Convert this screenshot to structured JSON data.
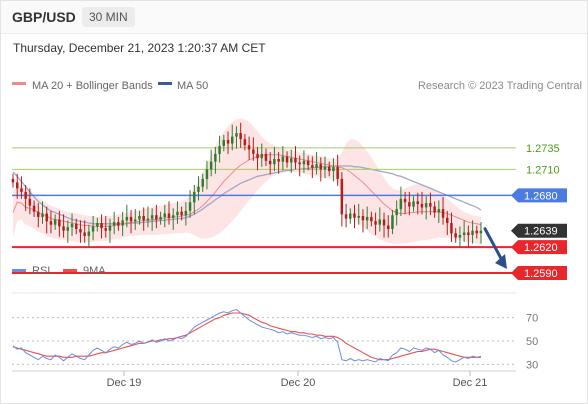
{
  "header": {
    "symbol": "GBP/USD",
    "timeframe": "30 MIN"
  },
  "datetime": "Thursday, December 21, 2023 1:20:37 AM CET",
  "legend": {
    "ma20": "MA 20 + Bollinger Bands",
    "ma50": "MA 50",
    "credit": "Research © 2023 Trading Central",
    "rsi": "RSI",
    "rsi_ma": "9MA"
  },
  "colors": {
    "ma20": "#f08a8a",
    "band": "#fde0e0",
    "ma50": "#9fa8c8",
    "green": "#9fd06a",
    "green_text": "#4f9a1f",
    "blue": "#4a7be0",
    "red": "#e8262c",
    "price_tag": "#333333",
    "rsi": "#6b8de3",
    "rsi_ma": "#e85050",
    "arrow": "#2c4f8c",
    "bull": "#2f7d32",
    "bear": "#b71c1c"
  },
  "chart_data": [
    {
      "type": "candlestick",
      "title": "GBP/USD",
      "timeframe": "30 MIN",
      "x_ticks": [
        "Dec 19",
        "Dec 20",
        "Dec 21"
      ],
      "ylim": [
        1.2575,
        1.2795
      ],
      "last_price": 1.2639,
      "levels": [
        {
          "value": 1.2735,
          "label": "1.2735",
          "style": "green-line"
        },
        {
          "value": 1.271,
          "label": "1.2710",
          "style": "green-line"
        },
        {
          "value": 1.268,
          "label": "1.2680",
          "style": "blue-tag"
        },
        {
          "value": 1.2639,
          "label": "1.2639",
          "style": "price-tag"
        },
        {
          "value": 1.262,
          "label": "1.2620",
          "style": "red-tag"
        },
        {
          "value": 1.259,
          "label": "1.2590",
          "style": "red-tag"
        }
      ],
      "close": [
        1.2695,
        1.2688,
        1.2684,
        1.2676,
        1.2668,
        1.2661,
        1.2655,
        1.2659,
        1.265,
        1.2646,
        1.2652,
        1.2644,
        1.2639,
        1.2643,
        1.2647,
        1.2641,
        1.2637,
        1.2633,
        1.2638,
        1.2644,
        1.2648,
        1.2642,
        1.2639,
        1.2645,
        1.2649,
        1.2645,
        1.2651,
        1.2655,
        1.265,
        1.2652,
        1.2656,
        1.2651,
        1.2653,
        1.2657,
        1.2652,
        1.2655,
        1.2659,
        1.2654,
        1.2657,
        1.2661,
        1.2657,
        1.2662,
        1.2672,
        1.2684,
        1.269,
        1.2699,
        1.271,
        1.2719,
        1.2728,
        1.2737,
        1.2744,
        1.274,
        1.2748,
        1.2752,
        1.2745,
        1.2738,
        1.2733,
        1.2728,
        1.2723,
        1.2728,
        1.272,
        1.2716,
        1.2722,
        1.2719,
        1.2725,
        1.2718,
        1.2723,
        1.2718,
        1.2716,
        1.272,
        1.2715,
        1.2712,
        1.2716,
        1.271,
        1.2713,
        1.2708,
        1.2713,
        1.2699,
        1.2658,
        1.2653,
        1.2659,
        1.2654,
        1.2656,
        1.2651,
        1.2655,
        1.265,
        1.2646,
        1.2652,
        1.2645,
        1.2641,
        1.2657,
        1.2664,
        1.2676,
        1.2672,
        1.2667,
        1.2673,
        1.267,
        1.2666,
        1.2671,
        1.2667,
        1.266,
        1.2664,
        1.2654,
        1.2648,
        1.2636,
        1.2631,
        1.2634,
        1.2637,
        1.2634,
        1.2639,
        1.2636,
        1.2639
      ],
      "ma20": [
        1.266,
        1.2672,
        1.2671,
        1.2666,
        1.2665,
        1.2663,
        1.266,
        1.2658,
        1.2656,
        1.2653,
        1.2652,
        1.2651,
        1.265,
        1.2649,
        1.2648,
        1.2647,
        1.2646,
        1.2645,
        1.2645,
        1.2644,
        1.2644,
        1.2644,
        1.2644,
        1.2644,
        1.2645,
        1.2646,
        1.2647,
        1.2648,
        1.2649,
        1.2649,
        1.265,
        1.2651,
        1.2651,
        1.2652,
        1.2652,
        1.2653,
        1.2654,
        1.2654,
        1.2655,
        1.2655,
        1.2656,
        1.2657,
        1.2658,
        1.2661,
        1.2664,
        1.2668,
        1.2673,
        1.2678,
        1.2684,
        1.269,
        1.2696,
        1.2701,
        1.2706,
        1.2711,
        1.2715,
        1.2718,
        1.2721,
        1.2723,
        1.2725,
        1.2726,
        1.2727,
        1.2727,
        1.2727,
        1.2727,
        1.2726,
        1.2725,
        1.2724,
        1.2723,
        1.2722,
        1.2721,
        1.272,
        1.2719,
        1.2718,
        1.2717,
        1.2716,
        1.2715,
        1.2714,
        1.2713,
        1.2712,
        1.271,
        1.2707,
        1.2703,
        1.2699,
        1.2695,
        1.269,
        1.2685,
        1.268,
        1.2675,
        1.267,
        1.2666,
        1.2662,
        1.266,
        1.2659,
        1.2659,
        1.266,
        1.266,
        1.2661,
        1.2661,
        1.2661,
        1.2661,
        1.2661,
        1.2661,
        1.266,
        1.2659,
        1.2657,
        1.2655,
        1.2653,
        1.2651,
        1.2649,
        1.2648,
        1.2647,
        1.2646
      ],
      "bb_upper": [
        1.2685,
        1.269,
        1.269,
        1.2688,
        1.2685,
        1.2682,
        1.2678,
        1.2674,
        1.2671,
        1.2668,
        1.2666,
        1.2664,
        1.2662,
        1.2661,
        1.266,
        1.2659,
        1.2658,
        1.2657,
        1.2656,
        1.2656,
        1.2655,
        1.2655,
        1.2656,
        1.2656,
        1.2657,
        1.2658,
        1.2659,
        1.266,
        1.2661,
        1.2662,
        1.2663,
        1.2664,
        1.2665,
        1.2666,
        1.2667,
        1.2668,
        1.2669,
        1.267,
        1.2671,
        1.2672,
        1.2673,
        1.2675,
        1.268,
        1.2688,
        1.2697,
        1.2707,
        1.2717,
        1.2727,
        1.2737,
        1.2746,
        1.2754,
        1.276,
        1.2765,
        1.2768,
        1.2769,
        1.2768,
        1.2765,
        1.276,
        1.2754,
        1.2748,
        1.2743,
        1.274,
        1.2738,
        1.2736,
        1.2734,
        1.2733,
        1.2732,
        1.2731,
        1.273,
        1.2729,
        1.2728,
        1.2727,
        1.2726,
        1.2725,
        1.2724,
        1.2723,
        1.2722,
        1.2722,
        1.273,
        1.274,
        1.2745,
        1.2745,
        1.2742,
        1.2737,
        1.2731,
        1.2724,
        1.2716,
        1.2708,
        1.27,
        1.2693,
        1.2688,
        1.2686,
        1.2686,
        1.2688,
        1.269,
        1.2692,
        1.2693,
        1.2693,
        1.2692,
        1.269,
        1.2687,
        1.2684,
        1.268,
        1.2676,
        1.2672,
        1.2668,
        1.2664,
        1.2661,
        1.2659,
        1.2657,
        1.2656,
        1.2655
      ],
      "bb_lower": [
        1.2632,
        1.265,
        1.2652,
        1.2646,
        1.2644,
        1.2641,
        1.2638,
        1.2636,
        1.2633,
        1.2631,
        1.263,
        1.2629,
        1.2628,
        1.2628,
        1.2627,
        1.2626,
        1.2626,
        1.2626,
        1.2626,
        1.2626,
        1.2627,
        1.2627,
        1.2627,
        1.2628,
        1.2629,
        1.263,
        1.2631,
        1.2632,
        1.2633,
        1.2633,
        1.2634,
        1.2634,
        1.2634,
        1.2634,
        1.2634,
        1.2635,
        1.2635,
        1.2635,
        1.2636,
        1.2636,
        1.2636,
        1.2637,
        1.2636,
        1.2634,
        1.2631,
        1.263,
        1.263,
        1.2631,
        1.2633,
        1.2636,
        1.264,
        1.2645,
        1.265,
        1.2656,
        1.2662,
        1.2668,
        1.2674,
        1.268,
        1.2686,
        1.2691,
        1.2696,
        1.27,
        1.2703,
        1.2705,
        1.2706,
        1.2707,
        1.2707,
        1.2707,
        1.2706,
        1.2705,
        1.2704,
        1.2703,
        1.2702,
        1.2701,
        1.27,
        1.2699,
        1.2698,
        1.2696,
        1.268,
        1.2667,
        1.266,
        1.2653,
        1.2648,
        1.2643,
        1.2639,
        1.2635,
        1.2632,
        1.2629,
        1.2627,
        1.2625,
        1.2624,
        1.2624,
        1.2624,
        1.2624,
        1.2625,
        1.2626,
        1.2627,
        1.2628,
        1.2628,
        1.2629,
        1.263,
        1.2631,
        1.2631,
        1.2631,
        1.263,
        1.2629,
        1.2628,
        1.2627,
        1.2626,
        1.2625,
        1.2624,
        1.2623
      ],
      "ma50": [
        1.2707,
        1.2702,
        1.2696,
        1.269,
        1.2684,
        1.2678,
        1.2673,
        1.2669,
        1.2665,
        1.2662,
        1.266,
        1.2658,
        1.2656,
        1.2654,
        1.2652,
        1.2651,
        1.265,
        1.2649,
        1.2648,
        1.2647,
        1.2647,
        1.2647,
        1.2647,
        1.2647,
        1.2647,
        1.2647,
        1.2647,
        1.2647,
        1.2648,
        1.2648,
        1.2648,
        1.2649,
        1.2649,
        1.265,
        1.265,
        1.2651,
        1.2651,
        1.2652,
        1.2652,
        1.2653,
        1.2653,
        1.2654,
        1.2656,
        1.2658,
        1.2661,
        1.2664,
        1.2668,
        1.2671,
        1.2675,
        1.2678,
        1.2682,
        1.2685,
        1.2688,
        1.2691,
        1.2694,
        1.2696,
        1.2698,
        1.27,
        1.2702,
        1.2703,
        1.2704,
        1.2705,
        1.2706,
        1.2707,
        1.2708,
        1.2709,
        1.2709,
        1.271,
        1.271,
        1.2711,
        1.2711,
        1.2712,
        1.2712,
        1.2713,
        1.2713,
        1.2713,
        1.2714,
        1.2714,
        1.2714,
        1.2714,
        1.2714,
        1.2713,
        1.2713,
        1.2712,
        1.2711,
        1.271,
        1.2709,
        1.2708,
        1.2707,
        1.2706,
        1.2705,
        1.2703,
        1.2702,
        1.27,
        1.2698,
        1.2696,
        1.2694,
        1.2692,
        1.269,
        1.2688,
        1.2686,
        1.2684,
        1.2682,
        1.268,
        1.2678,
        1.2676,
        1.2674,
        1.2672,
        1.267,
        1.2668,
        1.2666,
        1.2663
      ]
    },
    {
      "type": "line",
      "title": "RSI",
      "ylim": [
        20,
        80
      ],
      "y_ticks": [
        30,
        50,
        70
      ],
      "series": [
        {
          "name": "RSI",
          "values": [
            46,
            43,
            44,
            40,
            38,
            36,
            34,
            37,
            35,
            34,
            38,
            36,
            33,
            36,
            39,
            37,
            35,
            34,
            38,
            42,
            44,
            42,
            40,
            43,
            45,
            44,
            47,
            49,
            47,
            48,
            50,
            48,
            49,
            51,
            49,
            50,
            52,
            50,
            51,
            53,
            52,
            54,
            58,
            62,
            64,
            66,
            68,
            70,
            72,
            74,
            75,
            74,
            76,
            77,
            74,
            71,
            68,
            66,
            64,
            62,
            61,
            60,
            59,
            57,
            58,
            56,
            57,
            56,
            55,
            55,
            54,
            53,
            54,
            52,
            53,
            52,
            53,
            49,
            34,
            33,
            35,
            33,
            34,
            33,
            34,
            33,
            32,
            35,
            34,
            33,
            38,
            40,
            44,
            43,
            41,
            44,
            43,
            42,
            44,
            43,
            40,
            42,
            38,
            36,
            33,
            32,
            34,
            36,
            35,
            37,
            36,
            37
          ]
        },
        {
          "name": "9MA",
          "values": [
            45,
            44,
            43,
            42,
            41,
            40,
            39,
            38,
            37,
            37,
            37,
            37,
            36,
            36,
            36,
            37,
            37,
            37,
            37,
            38,
            39,
            40,
            40,
            41,
            42,
            43,
            44,
            45,
            46,
            47,
            48,
            48,
            49,
            50,
            50,
            51,
            51,
            52,
            52,
            53,
            54,
            55,
            57,
            59,
            61,
            63,
            65,
            67,
            69,
            70,
            72,
            73,
            74,
            74,
            74,
            73,
            72,
            70,
            68,
            66,
            65,
            63,
            62,
            61,
            60,
            59,
            58,
            58,
            57,
            57,
            56,
            56,
            55,
            55,
            54,
            54,
            54,
            53,
            51,
            48,
            46,
            44,
            42,
            40,
            38,
            36,
            35,
            34,
            34,
            34,
            35,
            36,
            37,
            38,
            39,
            40,
            41,
            41,
            42,
            43,
            43,
            42,
            41,
            40,
            39,
            38,
            37,
            36,
            36,
            36,
            36,
            36
          ]
        }
      ]
    }
  ]
}
